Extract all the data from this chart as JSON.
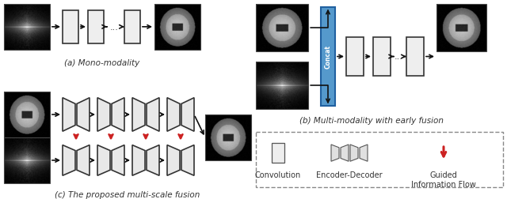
{
  "fig_width": 6.4,
  "fig_height": 2.52,
  "dpi": 100,
  "bg_color": "#ffffff",
  "title_a": "(a) Mono-modality",
  "title_b": "(b) Multi-modality with early fusion",
  "title_c": "(c) The proposed multi-scale fusion",
  "legend_conv": "Convolution",
  "legend_encdec": "Encoder-Decoder",
  "legend_flow": "Guided\nInformation Flow",
  "conv_fc": "#eeeeee",
  "conv_ec": "#333333",
  "encdec_fc": "#e8e8e8",
  "encdec_ec": "#333333",
  "concat_fc": "#5599cc",
  "concat_ec": "#2060a0",
  "red_color": "#cc2222",
  "black_color": "#111111",
  "gray_color": "#555555"
}
